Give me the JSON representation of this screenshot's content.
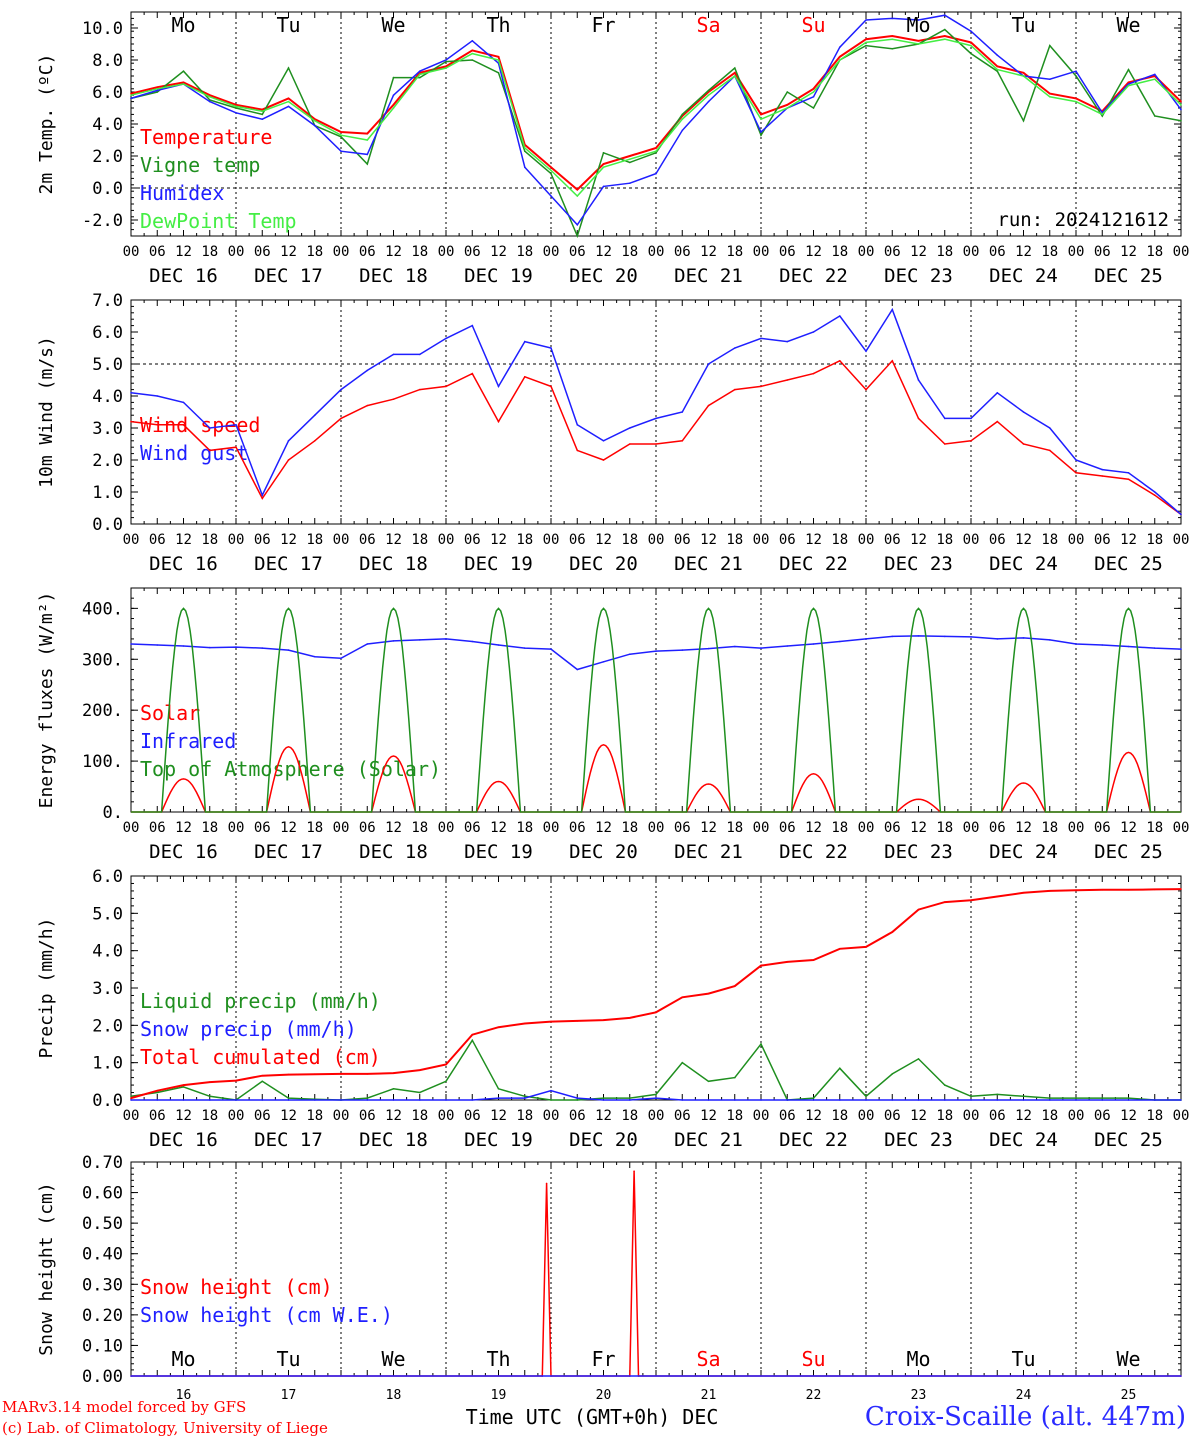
{
  "chart_data": [
    {
      "type": "line",
      "ylabel": "2m Temp. (ºC)",
      "ylim": [
        -3,
        11
      ],
      "yticks": [
        "-2.0",
        "0.0",
        "2.0",
        "4.0",
        "6.0",
        "8.0",
        "10.0"
      ],
      "yticks_values": [
        -2,
        0,
        2,
        4,
        6,
        8,
        10
      ],
      "annotation": "run: 2024121612",
      "reference_line": 0,
      "series": [
        {
          "name": "Temperature",
          "color": "#ff0000",
          "x": [
            0,
            6,
            12,
            18,
            24,
            30,
            36,
            42,
            48,
            54,
            60,
            66,
            72,
            78,
            84,
            90,
            96,
            102,
            108,
            114,
            120,
            126,
            132,
            138,
            144,
            150,
            156,
            162,
            168,
            174,
            180,
            186,
            192,
            198,
            204,
            210,
            216,
            222,
            228,
            234,
            240
          ],
          "values": [
            5.9,
            6.3,
            6.6,
            5.8,
            5.2,
            4.9,
            5.6,
            4.3,
            3.5,
            3.4,
            5.2,
            7.2,
            7.6,
            8.6,
            8.2,
            2.7,
            1.3,
            -0.1,
            1.5,
            2.0,
            2.5,
            4.5,
            6.0,
            7.2,
            4.6,
            5.2,
            6.2,
            8.2,
            9.3,
            9.5,
            9.2,
            9.5,
            9.1,
            7.6,
            7.2,
            5.9,
            5.6,
            4.8,
            6.6,
            7.0,
            5.4
          ]
        },
        {
          "name": "Vigne temp",
          "color": "#1f8f1f",
          "x": [
            0,
            6,
            12,
            18,
            24,
            30,
            36,
            42,
            48,
            54,
            60,
            66,
            72,
            78,
            84,
            90,
            96,
            102,
            108,
            114,
            120,
            126,
            132,
            138,
            144,
            150,
            156,
            162,
            168,
            174,
            180,
            186,
            192,
            198,
            204,
            210,
            216,
            222,
            228,
            234,
            240
          ],
          "values": [
            5.6,
            6.0,
            7.3,
            5.5,
            5.0,
            4.6,
            7.5,
            3.9,
            3.2,
            1.5,
            6.9,
            6.9,
            7.9,
            8.0,
            7.2,
            2.3,
            0.9,
            -3.0,
            2.2,
            1.6,
            2.2,
            4.6,
            6.1,
            7.5,
            3.3,
            6.0,
            5.0,
            8.0,
            8.9,
            8.7,
            9.0,
            9.9,
            8.4,
            7.3,
            4.2,
            8.9,
            7.0,
            4.5,
            7.4,
            4.5,
            4.2
          ]
        },
        {
          "name": "Humidex",
          "color": "#1f1fff",
          "x": [
            0,
            6,
            12,
            18,
            24,
            30,
            36,
            42,
            48,
            54,
            60,
            66,
            72,
            78,
            84,
            90,
            96,
            102,
            108,
            114,
            120,
            126,
            132,
            138,
            144,
            150,
            156,
            162,
            168,
            174,
            180,
            186,
            192,
            198,
            204,
            210,
            216,
            222,
            228,
            234,
            240
          ],
          "values": [
            5.6,
            6.1,
            6.5,
            5.4,
            4.7,
            4.3,
            5.1,
            3.9,
            2.3,
            2.1,
            5.8,
            7.3,
            8.0,
            9.2,
            7.8,
            1.3,
            -0.5,
            -2.3,
            0.1,
            0.3,
            0.9,
            3.6,
            5.4,
            7.0,
            3.5,
            5.0,
            5.7,
            8.8,
            10.5,
            10.6,
            10.5,
            10.8,
            9.8,
            8.3,
            7.0,
            6.8,
            7.3,
            4.7,
            6.5,
            7.1,
            4.9
          ]
        },
        {
          "name": "DewPoint Temp",
          "color": "#44ee44",
          "x": [
            0,
            6,
            12,
            18,
            24,
            30,
            36,
            42,
            48,
            54,
            60,
            66,
            72,
            78,
            84,
            90,
            96,
            102,
            108,
            114,
            120,
            126,
            132,
            138,
            144,
            150,
            156,
            162,
            168,
            174,
            180,
            186,
            192,
            198,
            204,
            210,
            216,
            222,
            228,
            234,
            240
          ],
          "values": [
            5.8,
            6.2,
            6.5,
            5.7,
            5.1,
            4.8,
            5.4,
            4.2,
            3.3,
            3.0,
            5.0,
            7.1,
            7.5,
            8.4,
            8.0,
            2.5,
            1.1,
            -0.5,
            1.3,
            1.8,
            2.3,
            4.3,
            5.8,
            7.0,
            4.3,
            5.0,
            6.0,
            8.0,
            9.1,
            9.3,
            9.0,
            9.3,
            8.9,
            7.4,
            7.0,
            5.7,
            5.4,
            4.6,
            6.4,
            6.8,
            5.2
          ]
        }
      ]
    },
    {
      "type": "line",
      "ylabel": "10m Wind (m/s)",
      "ylim": [
        0,
        7
      ],
      "yticks": [
        "0.0",
        "1.0",
        "2.0",
        "3.0",
        "4.0",
        "5.0",
        "6.0",
        "7.0"
      ],
      "yticks_values": [
        0,
        1,
        2,
        3,
        4,
        5,
        6,
        7
      ],
      "reference_line": 5,
      "series": [
        {
          "name": "Wind speed",
          "color": "#ff0000",
          "x": [
            0,
            6,
            12,
            18,
            24,
            30,
            36,
            42,
            48,
            54,
            60,
            66,
            72,
            78,
            84,
            90,
            96,
            102,
            108,
            114,
            120,
            126,
            132,
            138,
            144,
            150,
            156,
            162,
            168,
            174,
            180,
            186,
            192,
            198,
            204,
            210,
            216,
            222,
            228,
            234,
            240
          ],
          "values": [
            3.2,
            3.1,
            3.1,
            2.3,
            2.4,
            0.8,
            2.0,
            2.6,
            3.3,
            3.7,
            3.9,
            4.2,
            4.3,
            4.7,
            3.2,
            4.6,
            4.3,
            2.3,
            2.0,
            2.5,
            2.5,
            2.6,
            3.7,
            4.2,
            4.3,
            4.5,
            4.7,
            5.1,
            4.2,
            5.1,
            3.3,
            2.5,
            2.6,
            3.2,
            2.5,
            2.3,
            1.6,
            1.5,
            1.4,
            0.9,
            0.3
          ]
        },
        {
          "name": "Wind gust",
          "color": "#1f1fff",
          "x": [
            0,
            6,
            12,
            18,
            24,
            30,
            36,
            42,
            48,
            54,
            60,
            66,
            72,
            78,
            84,
            90,
            96,
            102,
            108,
            114,
            120,
            126,
            132,
            138,
            144,
            150,
            156,
            162,
            168,
            174,
            180,
            186,
            192,
            198,
            204,
            210,
            216,
            222,
            228,
            234,
            240
          ],
          "values": [
            4.1,
            4.0,
            3.8,
            3.0,
            3.1,
            0.9,
            2.6,
            3.4,
            4.2,
            4.8,
            5.3,
            5.3,
            5.8,
            6.2,
            4.3,
            5.7,
            5.5,
            3.1,
            2.6,
            3.0,
            3.3,
            3.5,
            5.0,
            5.5,
            5.8,
            5.7,
            6.0,
            6.5,
            5.4,
            6.7,
            4.5,
            3.3,
            3.3,
            4.1,
            3.5,
            3.0,
            2.0,
            1.7,
            1.6,
            1.0,
            0.3
          ]
        }
      ]
    },
    {
      "type": "line",
      "ylabel": "Energy fluxes (W/m²)",
      "ylim": [
        0,
        440
      ],
      "yticks": [
        "0.",
        "100.",
        "200.",
        "300.",
        "400."
      ],
      "yticks_values": [
        0,
        100,
        200,
        300,
        400
      ],
      "series": [
        {
          "name": "Solar",
          "color": "#ff0000",
          "daily_peaks": [
            65,
            128,
            110,
            60,
            132,
            55,
            75,
            25,
            57,
            117
          ]
        },
        {
          "name": "Infrared",
          "color": "#1f1fff",
          "x": [
            0,
            6,
            12,
            18,
            24,
            30,
            36,
            42,
            48,
            54,
            60,
            66,
            72,
            78,
            84,
            90,
            96,
            102,
            108,
            114,
            120,
            126,
            132,
            138,
            144,
            150,
            156,
            162,
            168,
            174,
            180,
            186,
            192,
            198,
            204,
            210,
            216,
            222,
            228,
            234,
            240
          ],
          "values": [
            330,
            328,
            326,
            323,
            324,
            322,
            318,
            305,
            302,
            330,
            336,
            338,
            340,
            335,
            328,
            322,
            320,
            280,
            295,
            310,
            316,
            318,
            321,
            325,
            322,
            326,
            330,
            335,
            340,
            345,
            346,
            345,
            344,
            340,
            342,
            338,
            330,
            328,
            325,
            322,
            320
          ]
        },
        {
          "name": "Top of Atmosphere (Solar)",
          "color": "#1f8f1f",
          "daily_peaks": [
            400,
            400,
            400,
            400,
            400,
            400,
            400,
            400,
            400,
            400
          ]
        }
      ]
    },
    {
      "type": "line",
      "ylabel": "Precip (mm/h)",
      "ylim": [
        0,
        6
      ],
      "yticks": [
        "0.0",
        "1.0",
        "2.0",
        "3.0",
        "4.0",
        "5.0",
        "6.0"
      ],
      "yticks_values": [
        0,
        1,
        2,
        3,
        4,
        5,
        6
      ],
      "series": [
        {
          "name": "Liquid precip (mm/h)",
          "color": "#1f8f1f",
          "x": [
            0,
            6,
            12,
            18,
            24,
            30,
            36,
            42,
            48,
            54,
            60,
            66,
            72,
            78,
            84,
            90,
            96,
            102,
            108,
            114,
            120,
            126,
            132,
            138,
            144,
            150,
            156,
            162,
            168,
            174,
            180,
            186,
            192,
            198,
            204,
            210,
            216,
            222,
            228,
            234,
            240
          ],
          "values": [
            0.1,
            0.2,
            0.35,
            0.1,
            0.0,
            0.5,
            0.05,
            0.02,
            0.0,
            0.05,
            0.3,
            0.2,
            0.5,
            1.6,
            0.3,
            0.1,
            0.0,
            0.0,
            0.05,
            0.05,
            0.15,
            1.0,
            0.5,
            0.6,
            1.5,
            0.0,
            0.05,
            0.85,
            0.1,
            0.7,
            1.1,
            0.4,
            0.1,
            0.15,
            0.1,
            0.05,
            0.05,
            0.05,
            0.05,
            0.0,
            0.0
          ]
        },
        {
          "name": "Snow precip (mm/h)",
          "color": "#1f1fff",
          "x": [
            0,
            6,
            12,
            18,
            24,
            30,
            36,
            42,
            48,
            54,
            60,
            66,
            72,
            78,
            84,
            90,
            96,
            102,
            108,
            114,
            120,
            126,
            132,
            138,
            144,
            150,
            156,
            162,
            168,
            174,
            180,
            186,
            192,
            198,
            204,
            210,
            216,
            222,
            228,
            234,
            240
          ],
          "values": [
            0,
            0,
            0,
            0,
            0,
            0,
            0,
            0,
            0,
            0,
            0,
            0,
            0,
            0,
            0.05,
            0.05,
            0.25,
            0.05,
            0.0,
            0.0,
            0.05,
            0,
            0,
            0,
            0,
            0,
            0,
            0,
            0,
            0,
            0,
            0,
            0,
            0,
            0,
            0,
            0,
            0,
            0,
            0,
            0
          ]
        },
        {
          "name": "Total cumulated (cm)",
          "color": "#ff0000",
          "x": [
            0,
            6,
            12,
            18,
            24,
            30,
            36,
            42,
            48,
            54,
            60,
            66,
            72,
            78,
            84,
            90,
            96,
            102,
            108,
            114,
            120,
            126,
            132,
            138,
            144,
            150,
            156,
            162,
            168,
            174,
            180,
            186,
            192,
            198,
            204,
            210,
            216,
            222,
            228,
            234,
            240
          ],
          "values": [
            0.05,
            0.25,
            0.4,
            0.48,
            0.52,
            0.65,
            0.68,
            0.69,
            0.7,
            0.7,
            0.72,
            0.8,
            0.95,
            1.75,
            1.95,
            2.05,
            2.1,
            2.12,
            2.14,
            2.2,
            2.35,
            2.75,
            2.85,
            3.05,
            3.6,
            3.7,
            3.75,
            4.05,
            4.1,
            4.5,
            5.1,
            5.3,
            5.35,
            5.45,
            5.55,
            5.6,
            5.62,
            5.63,
            5.63,
            5.64,
            5.65
          ]
        }
      ]
    },
    {
      "type": "line",
      "ylabel": "Snow height (cm)",
      "ylim": [
        0,
        0.7
      ],
      "yticks": [
        "0.00",
        "0.10",
        "0.20",
        "0.30",
        "0.40",
        "0.50",
        "0.60",
        "0.70"
      ],
      "yticks_values": [
        0,
        0.1,
        0.2,
        0.3,
        0.4,
        0.5,
        0.6,
        0.7
      ],
      "xlabel": "Time UTC (GMT+0h) DEC",
      "series": [
        {
          "name": "Snow height (cm)",
          "color": "#ff0000",
          "x": [
            0,
            94,
            95,
            96,
            114,
            115,
            116,
            240
          ],
          "values": [
            0,
            0,
            0.63,
            0,
            0,
            0.67,
            0,
            0
          ]
        },
        {
          "name": "Snow height (cm W.E.)",
          "color": "#1f1fff",
          "x": [
            0,
            240
          ],
          "values": [
            0,
            0
          ]
        }
      ]
    }
  ],
  "x_axis": {
    "hour_labels": [
      "00",
      "06",
      "12",
      "18"
    ],
    "date_labels": [
      "DEC 16",
      "DEC 17",
      "DEC 18",
      "DEC 19",
      "DEC 20",
      "DEC 21",
      "DEC 22",
      "DEC 23",
      "DEC 24",
      "DEC 25"
    ],
    "day_numbers": [
      "16",
      "17",
      "18",
      "19",
      "20",
      "21",
      "22",
      "23",
      "24",
      "25"
    ],
    "weekdays": [
      "Mo",
      "Tu",
      "We",
      "Th",
      "Fr",
      "Sa",
      "Su",
      "Mo",
      "Tu",
      "We"
    ],
    "weekend_color": "#ff0000",
    "weekday_color": "#000000",
    "hours_total": 240
  },
  "footer": {
    "model_line": "MARv3.14 model forced by GFS",
    "credit_line": "(c) Lab. of Climatology, University of Liege",
    "station_title": "Croix-Scaille (alt. 447m)"
  },
  "colors": {
    "red": "#ff0000",
    "green": "#1f8f1f",
    "blue": "#1f1fff",
    "light_green": "#44ee44"
  }
}
